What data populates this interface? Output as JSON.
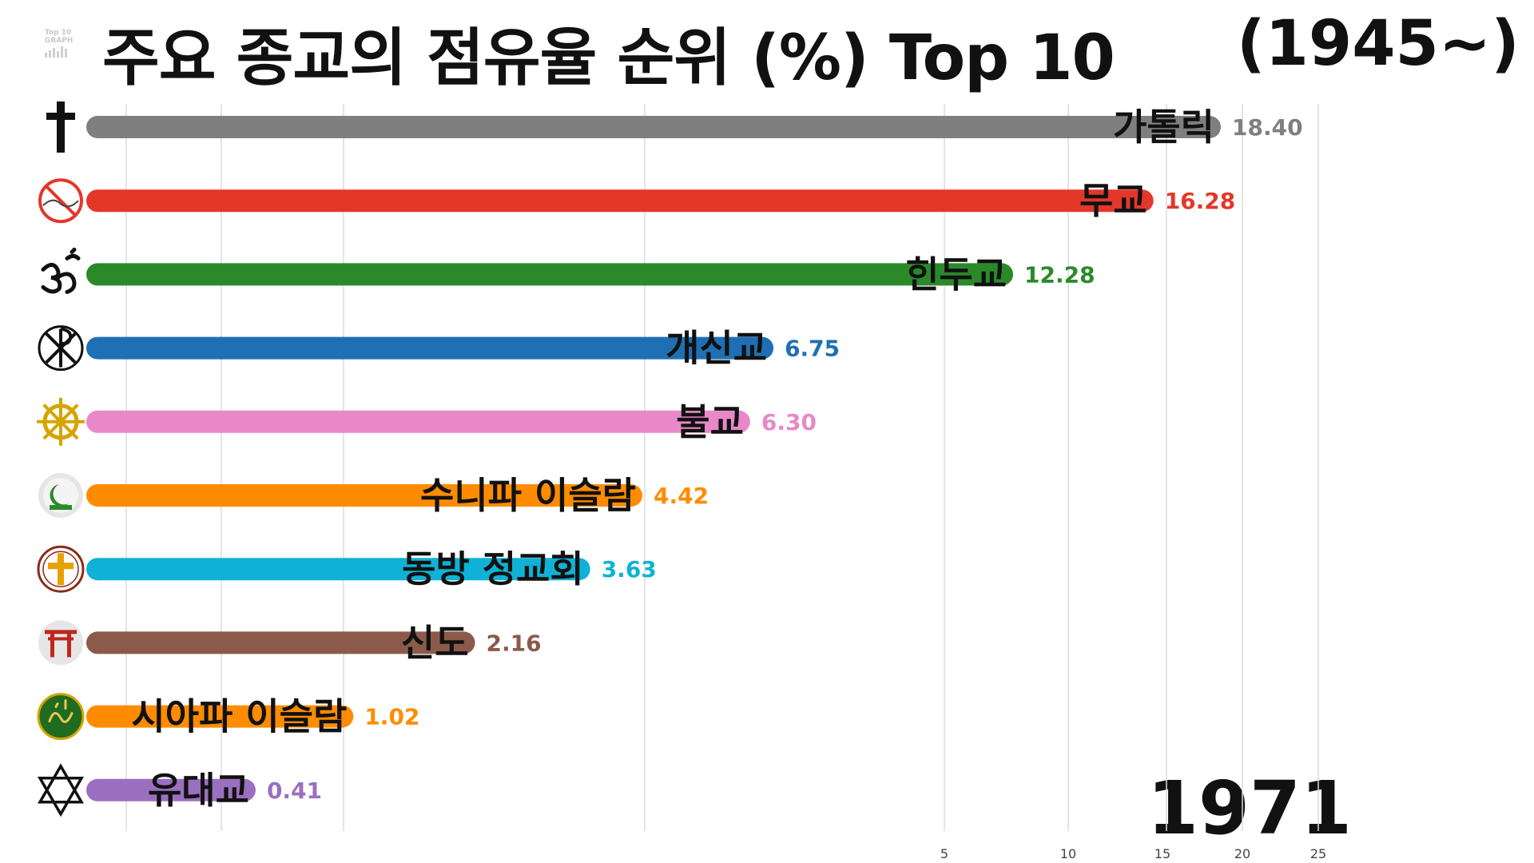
{
  "title": "주요 종교의 점유율 순위 (%) Top 10",
  "period": "(1945~)",
  "year": "1971",
  "logo": {
    "line1": "Top 10",
    "line2": "GRAPH"
  },
  "chart_data": {
    "type": "bar",
    "orientation": "horizontal",
    "title": "주요 종교의 점유율 순위 (%) Top 10",
    "categories": [
      "가톨릭",
      "무교",
      "힌두교",
      "개신교",
      "불교",
      "수니파 이슬람",
      "동방 정교회",
      "신도",
      "시아파 이슬람",
      "유대교"
    ],
    "values": [
      18.4,
      16.28,
      12.28,
      6.75,
      6.3,
      4.42,
      3.63,
      2.16,
      1.02,
      0.41
    ],
    "value_labels": [
      "18.40",
      "16.28",
      "12.28",
      "6.75",
      "6.30",
      "4.42",
      "3.63",
      "2.16",
      "1.02",
      "0.41"
    ],
    "colors": [
      "#7f7f7f",
      "#e3372a",
      "#2a8a2a",
      "#1f6fb4",
      "#e888c8",
      "#ff8c00",
      "#0fb2d6",
      "#8b5a4a",
      "#ff8c00",
      "#9a6fc0"
    ],
    "icons": [
      "latin-cross-icon",
      "no-religion-icon",
      "om-icon",
      "chi-rho-icon",
      "dharma-wheel-icon",
      "crescent-mosque-icon",
      "orthodox-cross-icon",
      "torii-gate-icon",
      "ali-calligraphy-icon",
      "star-of-david-icon"
    ],
    "x_ticks": [
      5,
      10,
      15,
      20,
      25
    ],
    "grid": true,
    "legend": "none"
  }
}
